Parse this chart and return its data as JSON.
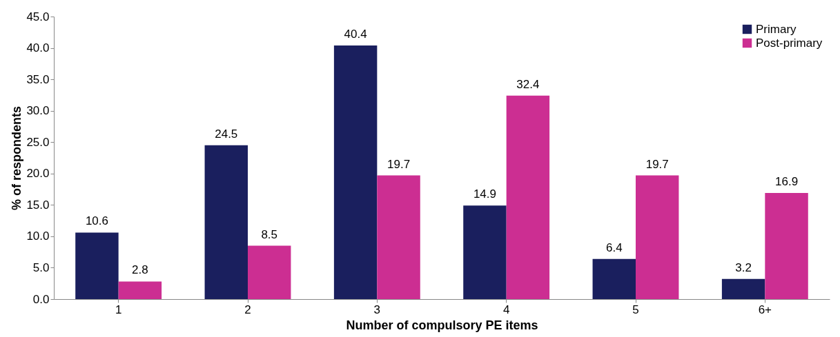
{
  "chart_data": {
    "type": "bar",
    "xlabel": "Number of compulsory PE items",
    "ylabel": "% of respondents",
    "categories": [
      "1",
      "2",
      "3",
      "4",
      "5",
      "6+"
    ],
    "series": [
      {
        "name": "Primary",
        "color": "#1a1f5e",
        "values": [
          10.6,
          24.5,
          40.4,
          14.9,
          6.4,
          3.2
        ]
      },
      {
        "name": "Post-primary",
        "color": "#cc2e92",
        "values": [
          2.8,
          8.5,
          19.7,
          32.4,
          19.7,
          16.9
        ]
      }
    ],
    "ylim": [
      0,
      45
    ],
    "yticks": [
      {
        "value": 0,
        "label": "0.0"
      },
      {
        "value": 5,
        "label": "5.0"
      },
      {
        "value": 10,
        "label": "10.0"
      },
      {
        "value": 15,
        "label": "15.0"
      },
      {
        "value": 20,
        "label": "20.0"
      },
      {
        "value": 25,
        "label": "25.0"
      },
      {
        "value": 30,
        "label": "30.0"
      },
      {
        "value": 35,
        "label": "35.0"
      },
      {
        "value": 40,
        "label": "40.0"
      },
      {
        "value": 45,
        "label": "45.0"
      }
    ],
    "data_labels": true,
    "grid": false,
    "legend": "top right"
  }
}
